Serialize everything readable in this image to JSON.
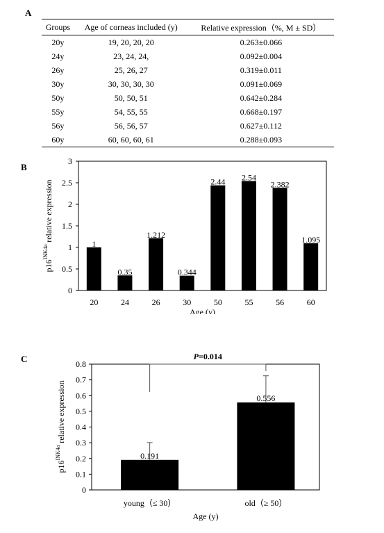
{
  "panels": {
    "a": "A",
    "b": "B",
    "c": "C"
  },
  "table": {
    "headers": [
      "Groups",
      "Age of corneas included (y)",
      "Relative expression（%, M ± SD）"
    ],
    "rows": [
      [
        "20y",
        "19, 20, 20, 20",
        "0.263±0.066"
      ],
      [
        "24y",
        "23, 24, 24,",
        "0.092±0.004"
      ],
      [
        "26y",
        "25, 26, 27",
        "0.319±0.011"
      ],
      [
        "30y",
        "30, 30, 30, 30",
        "0.091±0.069"
      ],
      [
        "50y",
        "50, 50, 51",
        "0.642±0.284"
      ],
      [
        "55y",
        "54, 55, 55",
        "0.668±0.197"
      ],
      [
        "56y",
        "56, 56, 57",
        "0.627±0.112"
      ],
      [
        "60y",
        "60, 60, 60, 61",
        "0.288±0.093"
      ]
    ]
  },
  "chart_data": [
    {
      "type": "bar",
      "panel": "B",
      "categories": [
        "20",
        "24",
        "26",
        "30",
        "50",
        "55",
        "56",
        "60"
      ],
      "values": [
        1,
        0.35,
        1.212,
        0.344,
        2.44,
        2.54,
        2.382,
        1.095
      ],
      "data_labels": [
        "1",
        "0.35",
        "1.212",
        "0.344",
        "2.44",
        "2.54",
        "2.382",
        "1.095"
      ],
      "ylim": [
        0,
        3
      ],
      "yticks": [
        "0",
        "0.5",
        "1",
        "1.5",
        "2",
        "2.5",
        "3"
      ],
      "xlabel": "Age (y)",
      "ylabel_prefix": "p16",
      "ylabel_sup": "INK4a",
      "ylabel_suffix": "relative expression",
      "bar_color": "#000000",
      "grid": false
    },
    {
      "type": "bar",
      "panel": "C",
      "categories": [
        "young（≤ 30）",
        "old（≥ 50）"
      ],
      "values": [
        0.191,
        0.556
      ],
      "errors": [
        0.11,
        0.17
      ],
      "data_labels": [
        "0.191",
        "0.556"
      ],
      "ylim": [
        0,
        0.8
      ],
      "yticks": [
        "0",
        "0.1",
        "0.2",
        "0.3",
        "0.4",
        "0.5",
        "0.6",
        "0.7",
        "0.8"
      ],
      "xlabel": "Age (y)",
      "ylabel_prefix": "p16",
      "ylabel_sup": "INK4a",
      "ylabel_suffix": "relative expression",
      "significance_italic": "P",
      "significance_value": "=0.014",
      "bar_color": "#000000",
      "grid": false
    }
  ]
}
